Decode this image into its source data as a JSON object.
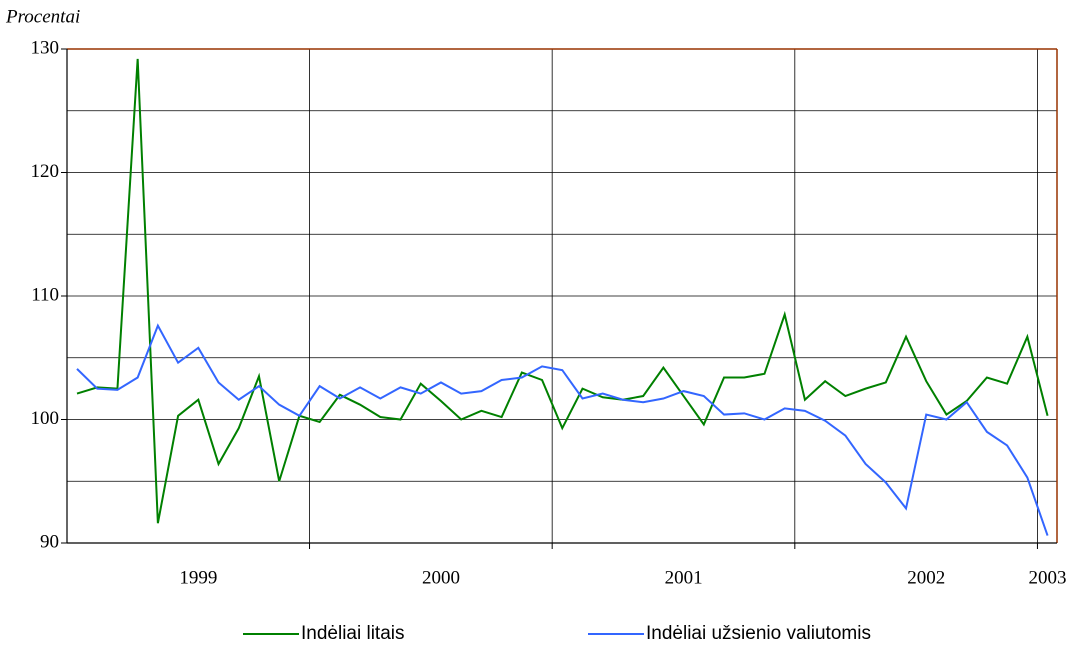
{
  "chart_data": {
    "type": "line",
    "y_label": "Procentai",
    "categories": [
      null,
      null,
      null,
      null,
      null,
      null,
      "1999",
      null,
      null,
      null,
      null,
      null,
      null,
      null,
      null,
      null,
      null,
      null,
      "2000",
      null,
      null,
      null,
      null,
      null,
      null,
      null,
      null,
      null,
      null,
      null,
      "2001",
      null,
      null,
      null,
      null,
      null,
      null,
      null,
      null,
      null,
      null,
      null,
      "2002",
      null,
      null,
      null,
      null,
      null,
      "2003"
    ],
    "series": [
      {
        "name": "Indėliai litais",
        "color": "#008000",
        "values": [
          102.1,
          102.6,
          102.5,
          129.2,
          91.6,
          100.3,
          101.6,
          96.4,
          99.3,
          103.5,
          95.0,
          100.3,
          99.8,
          102.0,
          101.2,
          100.2,
          100.0,
          102.9,
          101.5,
          100.0,
          100.7,
          100.2,
          103.8,
          103.2,
          99.3,
          102.5,
          101.8,
          101.6,
          101.9,
          104.2,
          101.9,
          99.6,
          103.4,
          103.4,
          103.7,
          108.5,
          101.6,
          103.1,
          101.9,
          102.5,
          103.0,
          106.7,
          103.1,
          100.4,
          101.5,
          103.4,
          102.9,
          106.7,
          100.3
        ]
      },
      {
        "name": "Indėliai užsienio valiutomis",
        "color": "#3366ff",
        "values": [
          104.1,
          102.5,
          102.4,
          103.4,
          107.6,
          104.6,
          105.8,
          103.0,
          101.6,
          102.7,
          101.2,
          100.3,
          102.7,
          101.7,
          102.6,
          101.7,
          102.6,
          102.1,
          103.0,
          102.1,
          102.3,
          103.2,
          103.4,
          104.3,
          104.0,
          101.7,
          102.1,
          101.6,
          101.4,
          101.7,
          102.3,
          101.9,
          100.4,
          100.5,
          100.0,
          100.9,
          100.7,
          99.9,
          98.7,
          96.4,
          94.9,
          92.8,
          100.4,
          100.0,
          101.4,
          99.0,
          97.9,
          95.3,
          90.6
        ]
      }
    ],
    "ylim": [
      90,
      130
    ],
    "yticks": [
      90,
      100,
      110,
      120,
      130
    ],
    "minor_yticks": [
      95,
      105,
      115,
      125
    ],
    "grid": true
  }
}
